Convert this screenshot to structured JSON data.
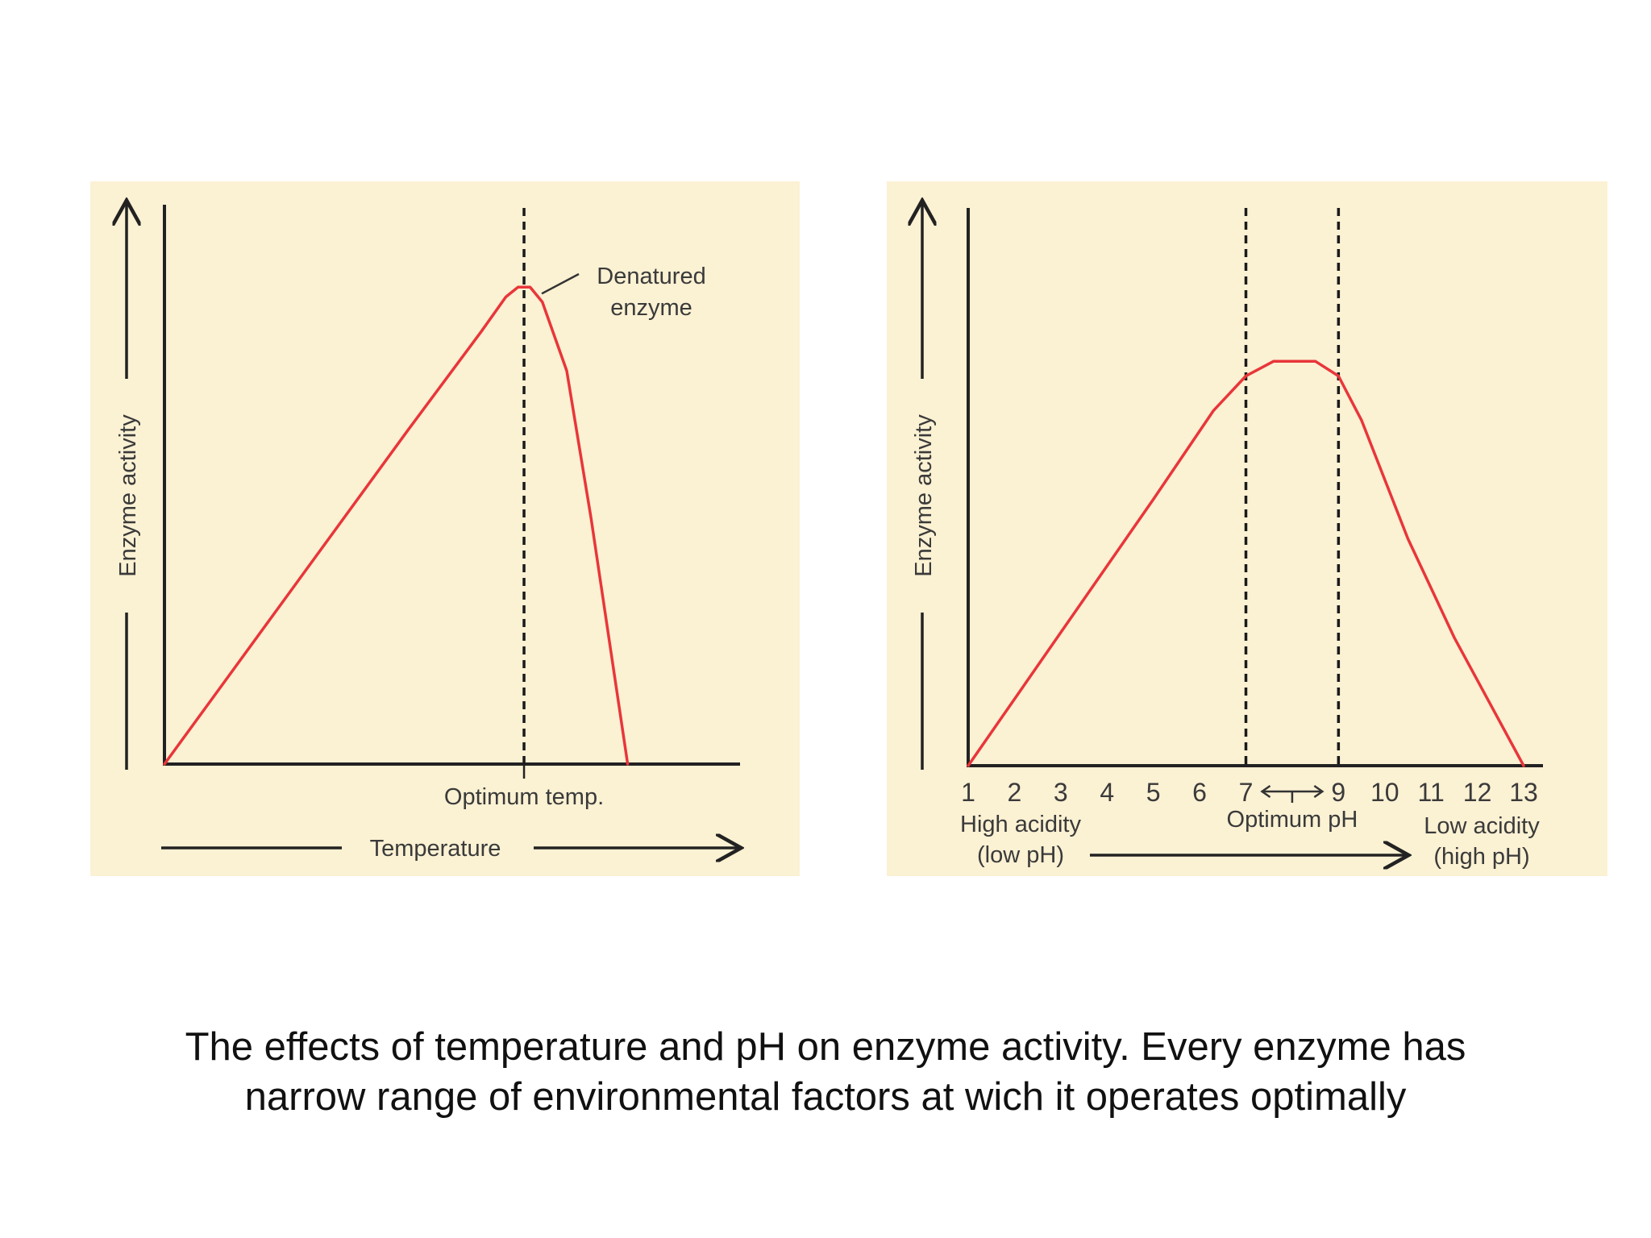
{
  "colors": {
    "curve": "#e8363a",
    "panel_background": "#fbf1d3",
    "axis": "#222222"
  },
  "caption": {
    "line1": "The effects of temperature and pH on enzyme activity. Every enzyme has",
    "line2": "narrow range of environmental factors at wich it operates optimally"
  },
  "chart_data": [
    {
      "type": "line",
      "title": "",
      "xlabel": "Temperature",
      "ylabel": "Enzyme activity",
      "x_marker_label": "Optimum temp.",
      "annotation": {
        "line1": "Denatured",
        "line2": "enzyme"
      },
      "xlim": [
        0,
        100
      ],
      "ylim": [
        0,
        100
      ],
      "x": [
        0,
        20,
        40,
        52,
        56,
        58,
        60,
        62,
        66,
        70,
        76
      ],
      "y": [
        0,
        34,
        68,
        88,
        95,
        97,
        97,
        94,
        80,
        50,
        0
      ],
      "optimum_x": 59,
      "grid": false,
      "legend": "none"
    },
    {
      "type": "line",
      "title": "",
      "xlabel": "",
      "ylabel": "Enzyme activity",
      "xlim": [
        1,
        13
      ],
      "ylim": [
        0,
        100
      ],
      "x_ticks": [
        "1",
        "2",
        "3",
        "4",
        "5",
        "6",
        "7",
        "9",
        "10",
        "11",
        "12",
        "13"
      ],
      "x_tick_values": [
        1,
        2,
        3,
        4,
        5,
        6,
        7,
        9,
        10,
        11,
        12,
        13
      ],
      "x_left_label": {
        "line1": "High acidity",
        "line2": "(low pH)"
      },
      "x_right_label": {
        "line1": "Low acidity",
        "line2": "(high pH)"
      },
      "optimum_label": "Optimum pH",
      "optimum_range": [
        7,
        9
      ],
      "x": [
        1,
        3,
        5,
        6.3,
        7,
        7.6,
        8.5,
        9,
        9.5,
        10.5,
        11.5,
        13
      ],
      "y": [
        0,
        27,
        54,
        72,
        79,
        82,
        82,
        79,
        70,
        46,
        26,
        0
      ],
      "grid": false,
      "legend": "none"
    }
  ]
}
